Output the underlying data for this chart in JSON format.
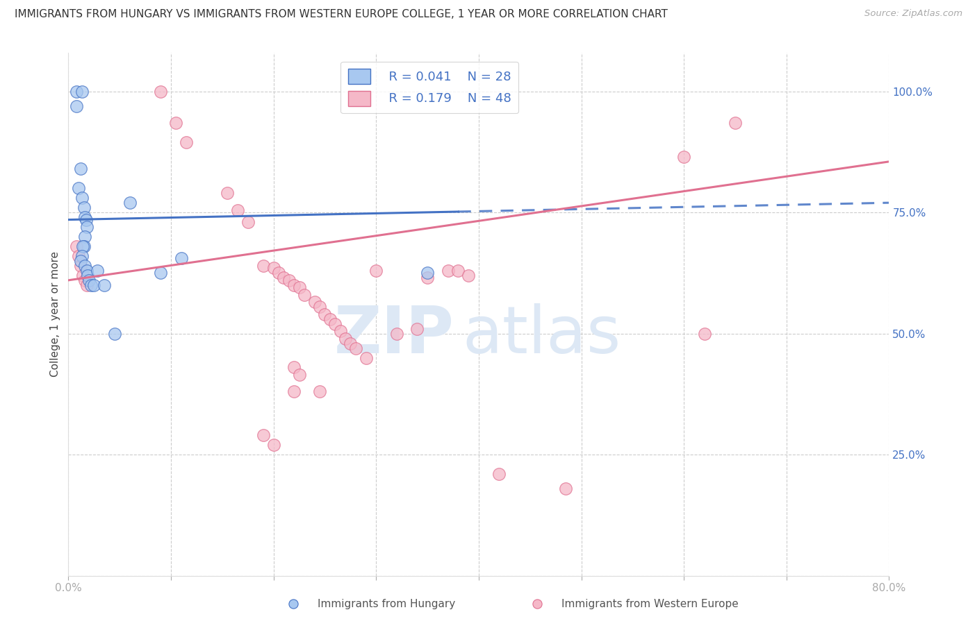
{
  "title": "IMMIGRANTS FROM HUNGARY VS IMMIGRANTS FROM WESTERN EUROPE COLLEGE, 1 YEAR OR MORE CORRELATION CHART",
  "source": "Source: ZipAtlas.com",
  "ylabel": "College, 1 year or more",
  "xlim": [
    0.0,
    0.8
  ],
  "ylim": [
    0.0,
    1.08
  ],
  "background_color": "#ffffff",
  "grid_color": "#cccccc",
  "legend_R1": "R = 0.041",
  "legend_N1": "N = 28",
  "legend_R2": "R = 0.179",
  "legend_N2": "N = 48",
  "blue_color": "#a8c8f0",
  "pink_color": "#f5b8c8",
  "trend_blue": "#4472c4",
  "trend_pink": "#e07090",
  "blue_line_solid_end": 0.38,
  "blue_line_y0": 0.735,
  "blue_line_y1": 0.77,
  "pink_line_y0": 0.61,
  "pink_line_y1": 0.855,
  "blue_scatter_x": [
    0.008,
    0.013,
    0.008,
    0.012,
    0.01,
    0.013,
    0.015,
    0.016,
    0.017,
    0.018,
    0.016,
    0.015,
    0.014,
    0.013,
    0.012,
    0.016,
    0.018,
    0.019,
    0.02,
    0.022,
    0.025,
    0.028,
    0.035,
    0.045,
    0.09,
    0.11,
    0.35,
    0.06
  ],
  "blue_scatter_y": [
    1.0,
    1.0,
    0.97,
    0.84,
    0.8,
    0.78,
    0.76,
    0.74,
    0.735,
    0.72,
    0.7,
    0.68,
    0.68,
    0.66,
    0.65,
    0.64,
    0.63,
    0.62,
    0.61,
    0.6,
    0.6,
    0.63,
    0.6,
    0.5,
    0.625,
    0.655,
    0.625,
    0.77
  ],
  "pink_scatter_x": [
    0.008,
    0.01,
    0.012,
    0.014,
    0.016,
    0.018,
    0.09,
    0.105,
    0.115,
    0.155,
    0.165,
    0.175,
    0.19,
    0.2,
    0.205,
    0.21,
    0.215,
    0.22,
    0.225,
    0.23,
    0.24,
    0.245,
    0.25,
    0.255,
    0.26,
    0.265,
    0.27,
    0.275,
    0.28,
    0.29,
    0.3,
    0.32,
    0.34,
    0.35,
    0.37,
    0.38,
    0.39,
    0.22,
    0.225,
    0.42,
    0.485,
    0.6,
    0.62,
    0.65,
    0.22,
    0.245,
    0.19,
    0.2
  ],
  "pink_scatter_y": [
    0.68,
    0.66,
    0.64,
    0.62,
    0.61,
    0.6,
    1.0,
    0.935,
    0.895,
    0.79,
    0.755,
    0.73,
    0.64,
    0.635,
    0.625,
    0.615,
    0.61,
    0.6,
    0.595,
    0.58,
    0.565,
    0.555,
    0.54,
    0.53,
    0.52,
    0.505,
    0.49,
    0.48,
    0.47,
    0.45,
    0.63,
    0.5,
    0.51,
    0.615,
    0.63,
    0.63,
    0.62,
    0.43,
    0.415,
    0.21,
    0.18,
    0.865,
    0.5,
    0.935,
    0.38,
    0.38,
    0.29,
    0.27
  ],
  "watermark_zip": "ZIP",
  "watermark_atlas": "atlas"
}
